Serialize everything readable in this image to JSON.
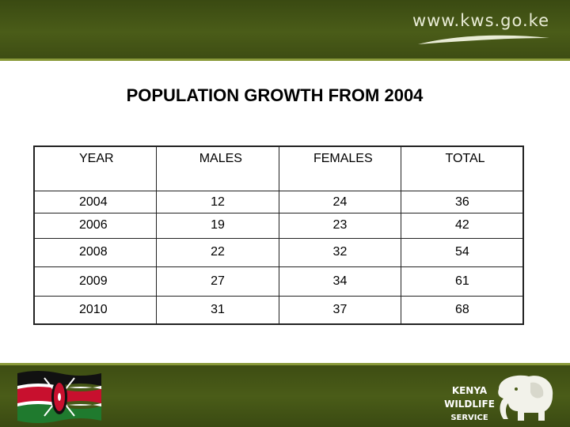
{
  "header": {
    "site_url": "www.kws.go.ke"
  },
  "title": "POPULATION GROWTH FROM 2004",
  "table": {
    "columns": [
      "YEAR",
      "MALES",
      "FEMALES",
      "TOTAL"
    ],
    "rows": [
      [
        "2004",
        "12",
        "24",
        "36"
      ],
      [
        "2006",
        "19",
        "23",
        "42"
      ],
      [
        "2008",
        "22",
        "32",
        "54"
      ],
      [
        "2009",
        "27",
        "34",
        "61"
      ],
      [
        "2010",
        "31",
        "37",
        "68"
      ]
    ]
  },
  "footer": {
    "flag_icon": "kenya-flag-icon",
    "logo": {
      "line1": "KENYA",
      "line2": "WILDLIFE",
      "line3": "SERVICE",
      "icon": "elephant-icon"
    }
  },
  "colors": {
    "band_green": "#4a5c18",
    "accent_line": "#8a9a3a"
  }
}
